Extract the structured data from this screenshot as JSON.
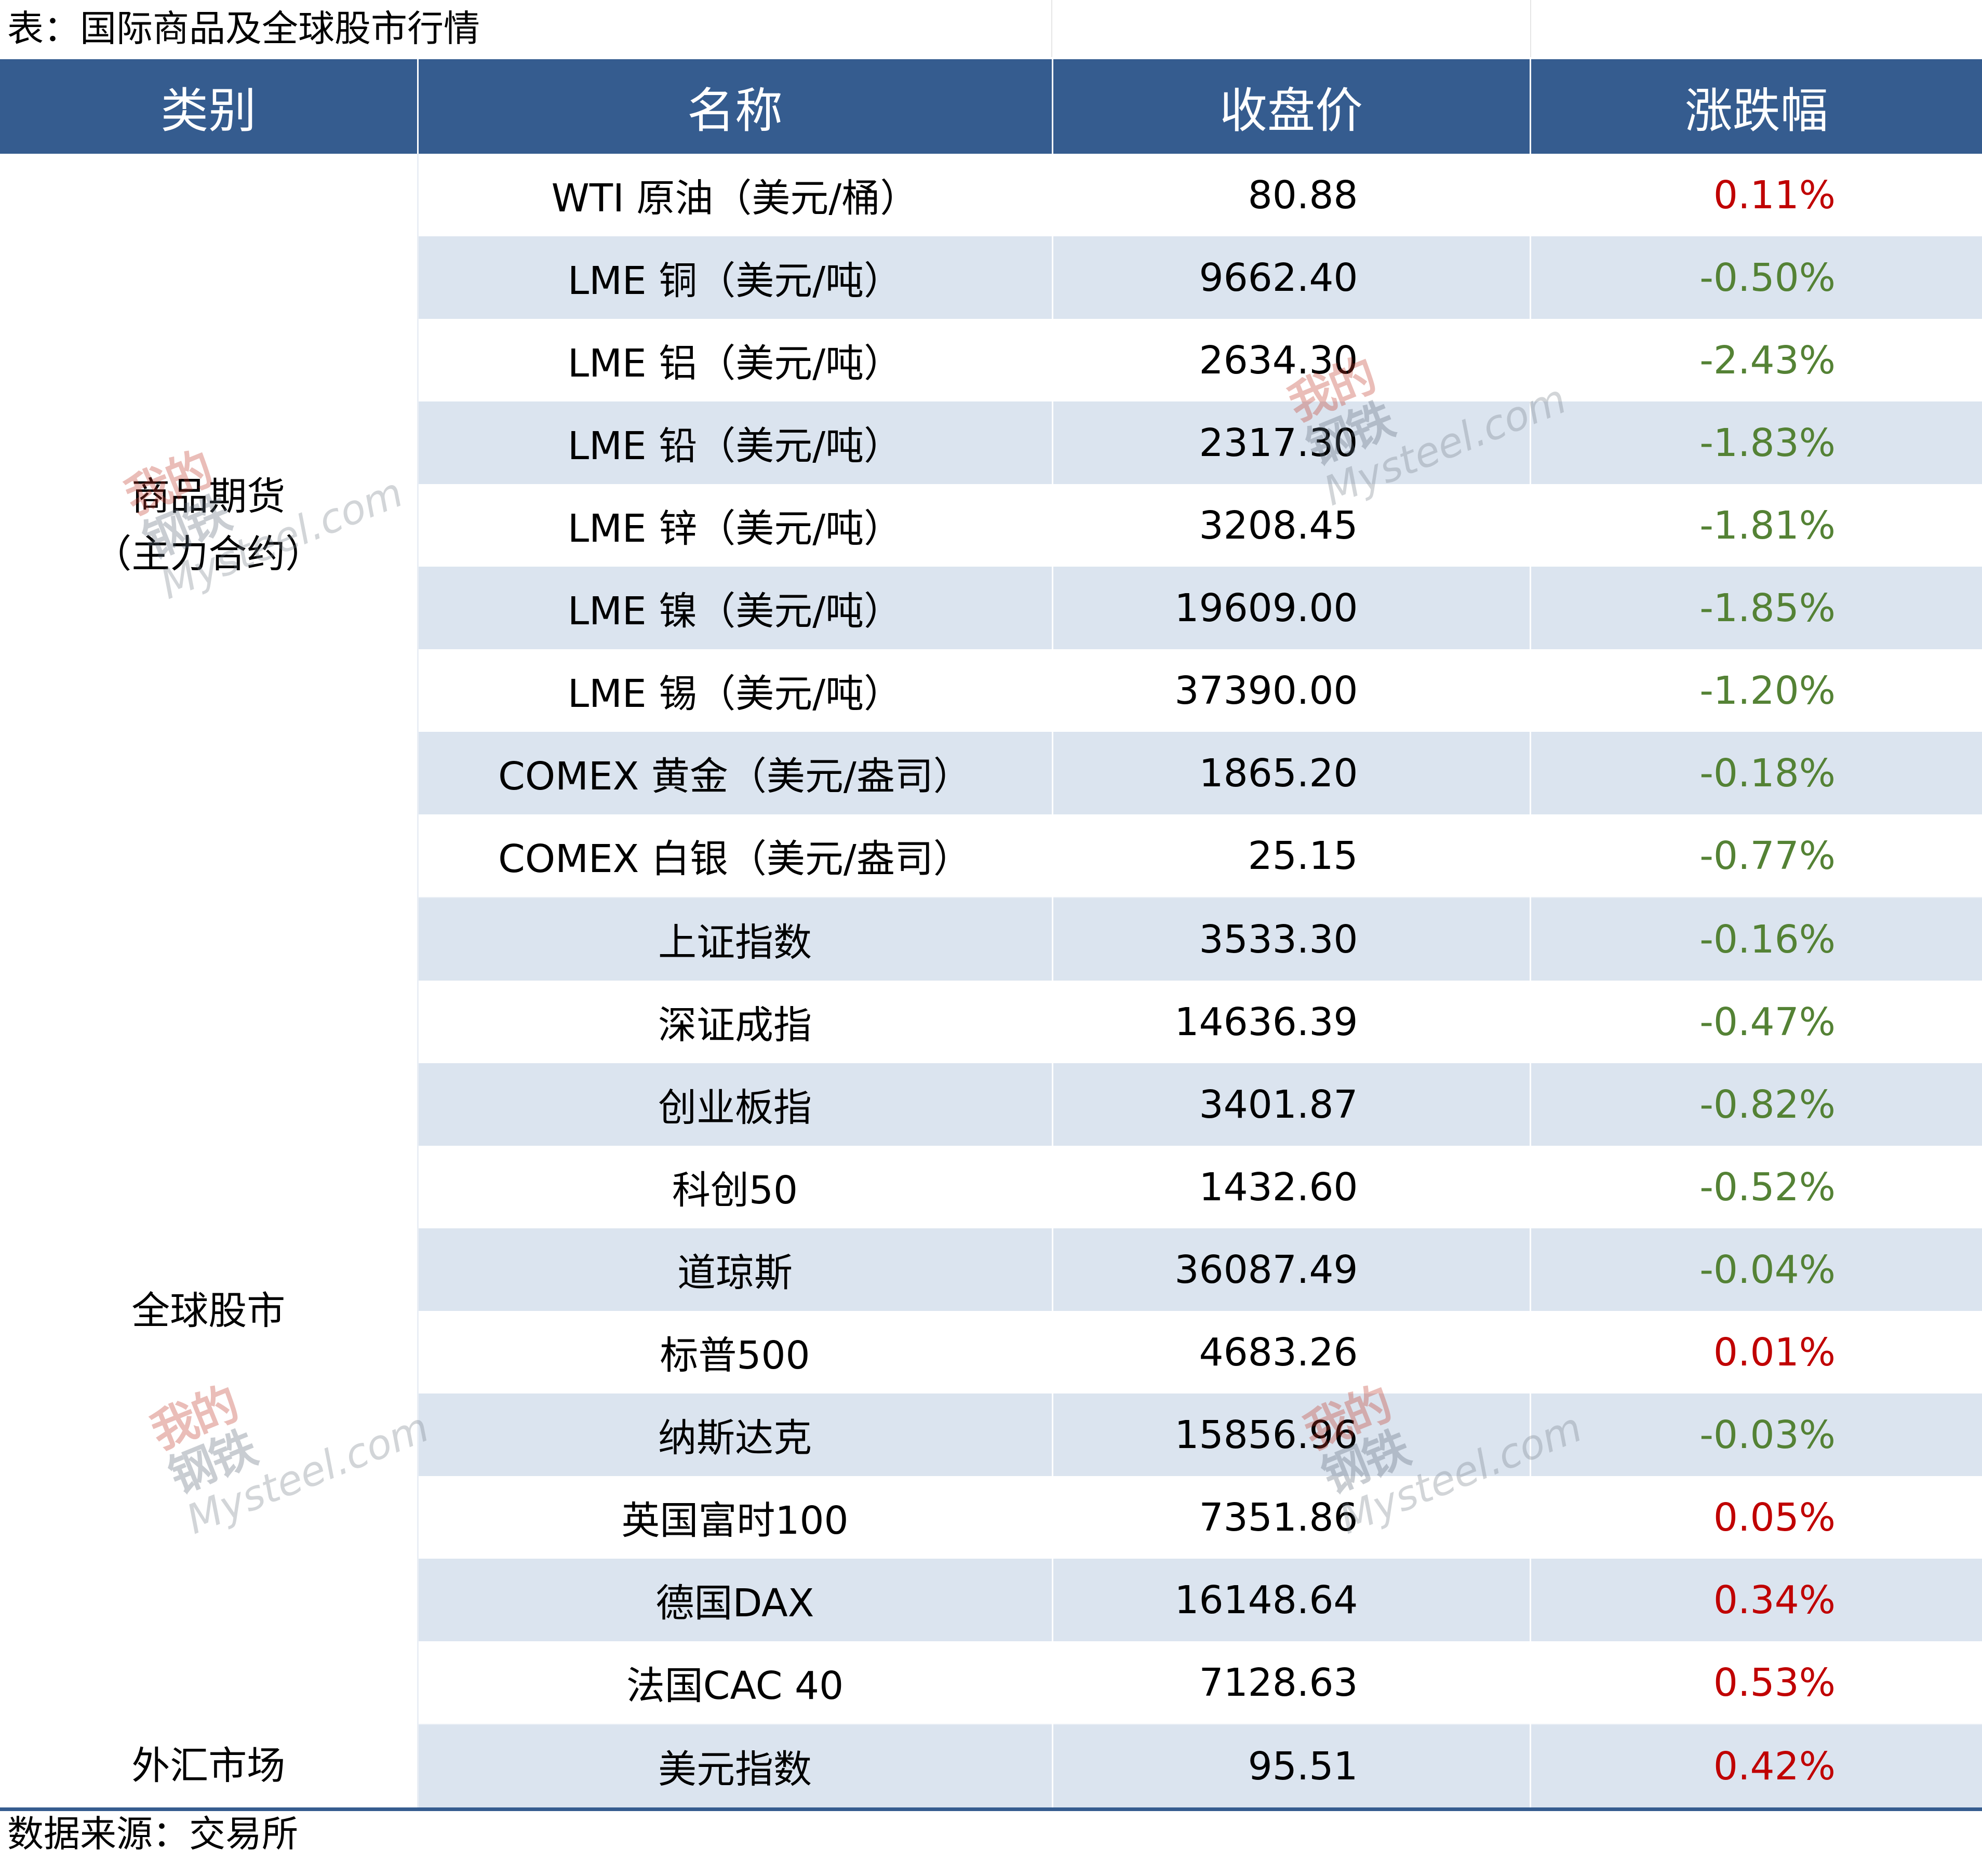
{
  "title": "表：国际商品及全球股市行情",
  "headers": [
    "类别",
    "名称",
    "收盘价",
    "涨跌幅"
  ],
  "groups": [
    {
      "category_line1": "商品期货",
      "category_line2": "（主力合约）"
    },
    {
      "category_line1": "全球股市"
    },
    {
      "category_line1": "外汇市场"
    }
  ],
  "rows": [
    {
      "name": "WTI 原油（美元/桶）",
      "price": "80.88",
      "change": "0.11%",
      "direction": "up"
    },
    {
      "name": "LME 铜（美元/吨）",
      "price": "9662.40",
      "change": "-0.50%",
      "direction": "down"
    },
    {
      "name": "LME 铝（美元/吨）",
      "price": "2634.30",
      "change": "-2.43%",
      "direction": "down"
    },
    {
      "name": "LME 铅（美元/吨）",
      "price": "2317.30",
      "change": "-1.83%",
      "direction": "down"
    },
    {
      "name": "LME 锌（美元/吨）",
      "price": "3208.45",
      "change": "-1.81%",
      "direction": "down"
    },
    {
      "name": "LME 镍（美元/吨）",
      "price": "19609.00",
      "change": "-1.85%",
      "direction": "down"
    },
    {
      "name": "LME 锡（美元/吨）",
      "price": "37390.00",
      "change": "-1.20%",
      "direction": "down"
    },
    {
      "name": "COMEX 黄金（美元/盎司）",
      "price": "1865.20",
      "change": "-0.18%",
      "direction": "down"
    },
    {
      "name": "COMEX 白银（美元/盎司）",
      "price": "25.15",
      "change": "-0.77%",
      "direction": "down"
    },
    {
      "name": "上证指数",
      "price": "3533.30",
      "change": "-0.16%",
      "direction": "down"
    },
    {
      "name": "深证成指",
      "price": "14636.39",
      "change": "-0.47%",
      "direction": "down"
    },
    {
      "name": "创业板指",
      "price": "3401.87",
      "change": "-0.82%",
      "direction": "down"
    },
    {
      "name": "科创50",
      "price": "1432.60",
      "change": "-0.52%",
      "direction": "down"
    },
    {
      "name": "道琼斯",
      "price": "36087.49",
      "change": "-0.04%",
      "direction": "down"
    },
    {
      "name": "标普500",
      "price": "4683.26",
      "change": "0.01%",
      "direction": "up"
    },
    {
      "name": "纳斯达克",
      "price": "15856.96",
      "change": "-0.03%",
      "direction": "down"
    },
    {
      "name": "英国富时100",
      "price": "7351.86",
      "change": "0.05%",
      "direction": "up"
    },
    {
      "name": "德国DAX",
      "price": "16148.64",
      "change": "0.34%",
      "direction": "up"
    },
    {
      "name": "法国CAC 40",
      "price": "7128.63",
      "change": "0.53%",
      "direction": "up"
    },
    {
      "name": "美元指数",
      "price": "95.51",
      "change": "0.42%",
      "direction": "up"
    }
  ],
  "source": "数据来源：交易所",
  "watermark": {
    "cn_line1": "我的",
    "cn_line2": "钢铁",
    "en": "Mysteel.com"
  },
  "colors": {
    "header_bg": "#355c8f",
    "alt_row_bg": "#dbe4ef",
    "up": "#c00000",
    "down": "#548235"
  }
}
